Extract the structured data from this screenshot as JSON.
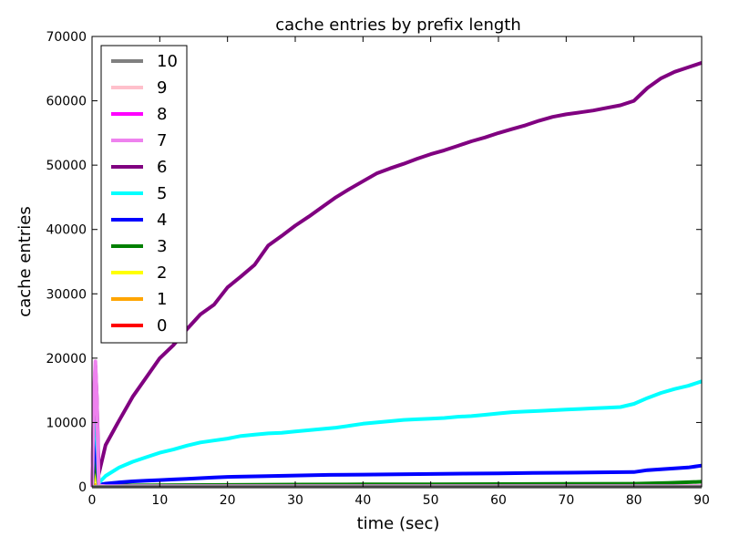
{
  "chart_data": {
    "type": "line",
    "title": "cache entries by prefix length",
    "xlabel": "time (sec)",
    "ylabel": "cache entries",
    "xlim": [
      0,
      90
    ],
    "ylim": [
      0,
      70000
    ],
    "xticks": [
      "0",
      "10",
      "20",
      "30",
      "40",
      "50",
      "60",
      "70",
      "80",
      "90"
    ],
    "yticks": [
      "0",
      "10000",
      "20000",
      "30000",
      "40000",
      "50000",
      "60000",
      "70000"
    ],
    "grid": false,
    "legend_position": "upper-left",
    "series": [
      {
        "name": "10",
        "color": "#808080",
        "x": [
          0,
          0.5,
          1,
          90
        ],
        "y": [
          0,
          0,
          0,
          0
        ]
      },
      {
        "name": "9",
        "color": "#ffc0cb",
        "x": [
          0,
          0.5,
          1,
          90
        ],
        "y": [
          0,
          0,
          0,
          0
        ]
      },
      {
        "name": "8",
        "color": "#ff00ff",
        "x": [
          0,
          0.5,
          1,
          90
        ],
        "y": [
          0,
          0,
          0,
          0
        ]
      },
      {
        "name": "7",
        "color": "#ee82ee",
        "x": [
          0,
          0.3,
          0.5,
          0.7,
          1,
          2,
          90
        ],
        "y": [
          0,
          15000,
          19500,
          14000,
          200,
          100,
          100
        ]
      },
      {
        "name": "6",
        "color": "#800080",
        "x": [
          0,
          0.3,
          0.5,
          0.7,
          1,
          2,
          4,
          6,
          8,
          10,
          12,
          14,
          16,
          18,
          20,
          22,
          24,
          26,
          28,
          30,
          32,
          34,
          36,
          38,
          40,
          42,
          44,
          46,
          48,
          50,
          52,
          54,
          56,
          58,
          60,
          62,
          64,
          66,
          68,
          70,
          72,
          74,
          76,
          78,
          80,
          81,
          82,
          84,
          86,
          88,
          90
        ],
        "y": [
          0,
          14000,
          18800,
          14000,
          2000,
          6500,
          10300,
          14000,
          17000,
          20000,
          22000,
          24500,
          26800,
          28300,
          31000,
          32700,
          34500,
          37500,
          39000,
          40600,
          42000,
          43500,
          45000,
          46300,
          47500,
          48700,
          49500,
          50200,
          51000,
          51700,
          52300,
          53000,
          53700,
          54300,
          55000,
          55600,
          56200,
          56900,
          57500,
          57900,
          58200,
          58500,
          58900,
          59300,
          60000,
          61000,
          62000,
          63500,
          64500,
          65200,
          65900
        ]
      },
      {
        "name": "5",
        "color": "#00ffff",
        "x": [
          0,
          0.3,
          0.5,
          0.7,
          1,
          2,
          4,
          6,
          8,
          10,
          12,
          14,
          16,
          18,
          20,
          22,
          24,
          26,
          28,
          30,
          32,
          34,
          36,
          38,
          40,
          42,
          44,
          46,
          48,
          50,
          52,
          54,
          56,
          58,
          60,
          62,
          64,
          66,
          68,
          70,
          72,
          74,
          76,
          78,
          80,
          82,
          84,
          86,
          88,
          90
        ],
        "y": [
          0,
          10000,
          15200,
          9000,
          600,
          1700,
          3000,
          3900,
          4600,
          5300,
          5800,
          6400,
          6900,
          7200,
          7500,
          7900,
          8100,
          8300,
          8400,
          8600,
          8800,
          9000,
          9200,
          9500,
          9800,
          10000,
          10200,
          10400,
          10500,
          10600,
          10700,
          10900,
          11000,
          11200,
          11400,
          11600,
          11700,
          11800,
          11900,
          12000,
          12100,
          12200,
          12300,
          12400,
          12900,
          13800,
          14600,
          15200,
          15700,
          16400
        ]
      },
      {
        "name": "4",
        "color": "#0000ff",
        "x": [
          0,
          0.3,
          0.5,
          0.7,
          1,
          2,
          4,
          6,
          8,
          10,
          12,
          14,
          16,
          18,
          20,
          25,
          30,
          35,
          40,
          45,
          50,
          55,
          60,
          65,
          70,
          75,
          80,
          82,
          85,
          88,
          90
        ],
        "y": [
          0,
          6000,
          10000,
          5000,
          300,
          500,
          700,
          850,
          950,
          1050,
          1150,
          1250,
          1350,
          1450,
          1550,
          1650,
          1750,
          1850,
          1900,
          1950,
          2000,
          2050,
          2100,
          2150,
          2200,
          2250,
          2300,
          2600,
          2800,
          3000,
          3300
        ]
      },
      {
        "name": "3",
        "color": "#008000",
        "x": [
          0,
          0.3,
          0.5,
          0.7,
          1,
          2,
          10,
          20,
          30,
          40,
          50,
          60,
          70,
          80,
          85,
          90
        ],
        "y": [
          0,
          3500,
          5000,
          2500,
          150,
          200,
          250,
          300,
          350,
          380,
          400,
          420,
          450,
          480,
          600,
          800
        ]
      },
      {
        "name": "2",
        "color": "#ffff00",
        "x": [
          0,
          0.3,
          0.5,
          0.7,
          1,
          2,
          90
        ],
        "y": [
          0,
          1200,
          2000,
          900,
          50,
          60,
          80
        ]
      },
      {
        "name": "1",
        "color": "#ffa500",
        "x": [
          0,
          0.5,
          1,
          90
        ],
        "y": [
          0,
          300,
          20,
          20
        ]
      },
      {
        "name": "0",
        "color": "#ff0000",
        "x": [
          0,
          90
        ],
        "y": [
          5,
          5
        ]
      }
    ]
  }
}
